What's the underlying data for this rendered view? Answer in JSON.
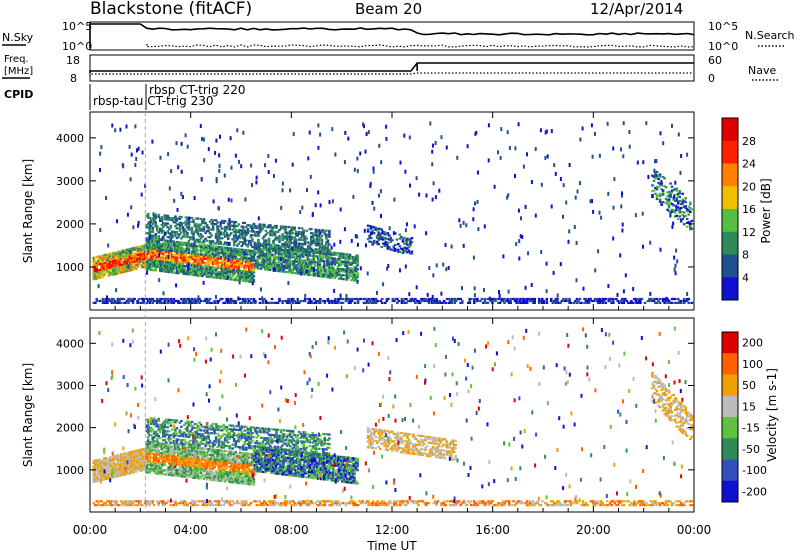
{
  "header": {
    "station": "Blackstone (fitACF)",
    "beam": "Beam 20",
    "date": "12/Apr/2014"
  },
  "summary_panel": {
    "nsky_label": "N.Sky",
    "nsky_ticks": [
      "10^5",
      "10^0"
    ],
    "nsearch_label": "N.Search",
    "freq_label_line1": "Freq.",
    "freq_label_line2": "[MHz]",
    "freq_ticks": [
      "18",
      "8"
    ],
    "nave_label": "Nave",
    "nave_ticks": [
      "60",
      "0"
    ],
    "cpid_label": "CPID",
    "cpid_mode1": "rbsp-tau CT-trig 230",
    "cpid_mode2": "rbsp CT-trig 220"
  },
  "chart_data": [
    {
      "type": "heatmap",
      "panel": "power",
      "ylabel": "Slant Range [km]",
      "yticks": [
        "1000",
        "2000",
        "3000",
        "4000"
      ],
      "colorbar_label": "Power [dB]",
      "colorbar_ticks": [
        "4",
        "8",
        "12",
        "16",
        "20",
        "24",
        "28"
      ],
      "colors": [
        "#1010d0",
        "#205090",
        "#2e8b57",
        "#55c040",
        "#f0c000",
        "#ff8000",
        "#ff2000",
        "#e00000"
      ]
    },
    {
      "type": "heatmap",
      "panel": "velocity",
      "ylabel": "Slant Range [km]",
      "yticks": [
        "1000",
        "2000",
        "3000",
        "4000"
      ],
      "colorbar_label": "Velocity [m s-1]",
      "colorbar_ticks": [
        "200",
        "100",
        "50",
        "15",
        "-15",
        "-50",
        "-100",
        "-200"
      ],
      "colors": [
        "#1010d0",
        "#3050c0",
        "#2e8b57",
        "#60c040",
        "#bbbbbb",
        "#f0a000",
        "#ff6000",
        "#e00000"
      ]
    }
  ],
  "xaxis": {
    "label": "Time UT",
    "ticks": [
      "00:00",
      "04:00",
      "08:00",
      "12:00",
      "16:00",
      "20:00",
      "00:00"
    ]
  }
}
